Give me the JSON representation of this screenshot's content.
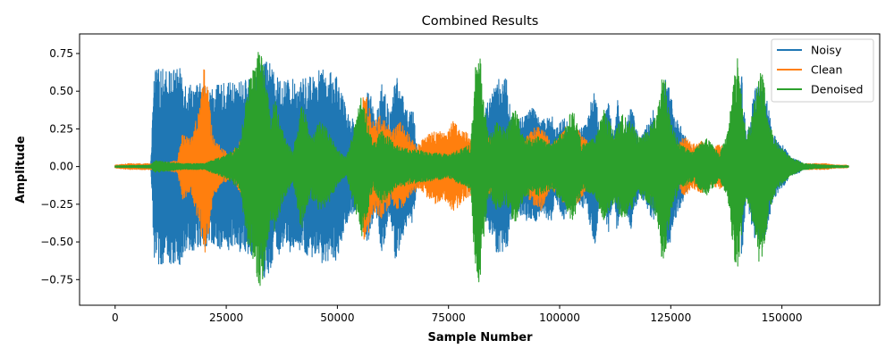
{
  "chart_data": {
    "type": "line",
    "title": "Combined Results",
    "xlabel": "Sample Number",
    "ylabel": "Amplitude",
    "xlim": [
      -8000,
      172000
    ],
    "ylim": [
      -0.92,
      0.88
    ],
    "x_ticks": [
      0,
      25000,
      50000,
      75000,
      100000,
      125000,
      150000
    ],
    "x_tick_labels": [
      "0",
      "25000",
      "50000",
      "75000",
      "100000",
      "125000",
      "150000"
    ],
    "y_ticks": [
      -0.75,
      -0.5,
      -0.25,
      0.0,
      0.25,
      0.5,
      0.75
    ],
    "y_tick_labels": [
      "−0.75",
      "−0.50",
      "−0.25",
      "0.00",
      "0.25",
      "0.50",
      "0.75"
    ],
    "grid": false,
    "legend_position": "top-right",
    "series": [
      {
        "name": "Noisy",
        "color": "#1f77b4",
        "x_range": [
          0,
          155000
        ],
        "envelope": {
          "x": [
            0,
            8000,
            8800,
            9000,
            15000,
            16000,
            20000,
            21000,
            24000,
            27000,
            32000,
            33500,
            36000,
            38000,
            42000,
            46000,
            48000,
            50000,
            52000,
            54000,
            55000,
            55500,
            56500,
            57500,
            58500,
            60000,
            61000,
            62000,
            63000,
            64000,
            65000,
            66000,
            67000,
            68000,
            72000,
            80000,
            85000,
            87000,
            88000,
            89000,
            90000,
            92000,
            94000,
            96000,
            98000,
            99000,
            101000,
            103000,
            106000,
            108000,
            109000,
            111000,
            112000,
            113000,
            114000,
            116000,
            118000,
            120000,
            121000,
            122000,
            124000,
            126000,
            128000,
            130000,
            132000,
            134000,
            136000,
            138000,
            139000,
            141000,
            142000,
            144000,
            146000,
            148000,
            150000,
            152000,
            154000,
            155000
          ],
          "y": [
            0.01,
            0.01,
            0.62,
            0.65,
            0.65,
            0.56,
            0.55,
            0.52,
            0.55,
            0.56,
            0.6,
            0.78,
            0.6,
            0.58,
            0.58,
            0.65,
            0.63,
            0.62,
            0.38,
            0.3,
            0.2,
            0.38,
            0.52,
            0.48,
            0.3,
            0.6,
            0.45,
            0.35,
            0.62,
            0.55,
            0.45,
            0.35,
            0.4,
            0.1,
            0.06,
            0.04,
            0.55,
            0.6,
            0.62,
            0.35,
            0.3,
            0.35,
            0.4,
            0.3,
            0.38,
            0.25,
            0.36,
            0.2,
            0.3,
            0.55,
            0.2,
            0.45,
            0.2,
            0.45,
            0.22,
            0.42,
            0.18,
            0.3,
            0.38,
            0.28,
            0.62,
            0.35,
            0.22,
            0.1,
            0.15,
            0.08,
            0.06,
            0.03,
            0.1,
            0.62,
            0.2,
            0.55,
            0.55,
            0.22,
            0.15,
            0.06,
            0.04,
            0.01
          ]
        }
      },
      {
        "name": "Clean",
        "color": "#ff7f0e",
        "x_range": [
          0,
          165000
        ],
        "envelope": {
          "x": [
            0,
            3000,
            6000,
            10000,
            14000,
            15000,
            17000,
            19000,
            20000,
            21000,
            22000,
            24000,
            26000,
            28000,
            30000,
            32000,
            33000,
            34000,
            36000,
            38000,
            40000,
            42000,
            44000,
            46000,
            48000,
            50000,
            52000,
            54000,
            55000,
            56000,
            57000,
            58000,
            60000,
            62000,
            64000,
            66000,
            68000,
            70000,
            72000,
            74000,
            76000,
            78000,
            80000,
            82000,
            84000,
            86000,
            88000,
            90000,
            92000,
            94000,
            96000,
            98000,
            100000,
            102000,
            104000,
            106000,
            108000,
            110000,
            112000,
            114000,
            116000,
            118000,
            120000,
            122000,
            124000,
            126000,
            128000,
            130000,
            132000,
            134000,
            136000,
            138000,
            140000,
            142000,
            144000,
            146000,
            148000,
            150000,
            152000,
            154000,
            156000,
            158000,
            160000,
            162000,
            164500,
            165000
          ],
          "y": [
            0.01,
            0.02,
            0.02,
            0.02,
            0.04,
            0.22,
            0.18,
            0.4,
            0.66,
            0.5,
            0.2,
            0.12,
            0.08,
            0.18,
            0.2,
            0.14,
            0.2,
            0.1,
            0.06,
            0.04,
            0.05,
            0.04,
            0.05,
            0.03,
            0.05,
            0.02,
            0.04,
            0.03,
            0.15,
            0.55,
            0.45,
            0.3,
            0.35,
            0.25,
            0.3,
            0.22,
            0.15,
            0.2,
            0.25,
            0.22,
            0.3,
            0.25,
            0.2,
            0.15,
            0.2,
            0.12,
            0.15,
            0.1,
            0.18,
            0.25,
            0.3,
            0.15,
            0.2,
            0.3,
            0.25,
            0.18,
            0.1,
            0.15,
            0.2,
            0.12,
            0.18,
            0.12,
            0.2,
            0.15,
            0.25,
            0.12,
            0.2,
            0.15,
            0.18,
            0.12,
            0.15,
            0.1,
            0.08,
            0.1,
            0.06,
            0.05,
            0.04,
            0.04,
            0.02,
            0.02,
            0.02,
            0.02,
            0.02,
            0.01,
            0.01,
            0.005
          ]
        }
      },
      {
        "name": "Denoised",
        "color": "#2ca02c",
        "x_range": [
          0,
          165000
        ],
        "envelope": {
          "x": [
            0,
            8000,
            9000,
            15000,
            20000,
            25000,
            28000,
            30000,
            32000,
            33000,
            34000,
            35000,
            36000,
            38000,
            40000,
            42000,
            44000,
            46000,
            48000,
            50000,
            52000,
            54000,
            55500,
            56500,
            58000,
            60000,
            63000,
            66000,
            70000,
            75000,
            80000,
            81000,
            82000,
            83000,
            84000,
            86000,
            88000,
            90000,
            92000,
            95000,
            98000,
            101000,
            103000,
            105000,
            108000,
            110000,
            112000,
            114000,
            116000,
            118000,
            120000,
            122000,
            123000,
            124000,
            125000,
            127000,
            130000,
            133000,
            136000,
            138000,
            139000,
            140000,
            141000,
            142000,
            144000,
            145000,
            146000,
            147000,
            149000,
            152000,
            155000,
            160000,
            165000
          ],
          "y": [
            0.005,
            0.01,
            0.04,
            0.02,
            0.02,
            0.08,
            0.15,
            0.55,
            0.75,
            0.83,
            0.6,
            0.35,
            0.45,
            0.22,
            0.1,
            0.45,
            0.2,
            0.3,
            0.25,
            0.12,
            0.06,
            0.3,
            0.5,
            0.35,
            0.15,
            0.25,
            0.15,
            0.12,
            0.1,
            0.08,
            0.15,
            0.72,
            0.78,
            0.45,
            0.2,
            0.3,
            0.25,
            0.4,
            0.2,
            0.2,
            0.15,
            0.25,
            0.4,
            0.15,
            0.2,
            0.38,
            0.25,
            0.35,
            0.3,
            0.2,
            0.25,
            0.35,
            0.65,
            0.55,
            0.3,
            0.15,
            0.1,
            0.2,
            0.08,
            0.25,
            0.55,
            0.75,
            0.45,
            0.2,
            0.45,
            0.7,
            0.55,
            0.3,
            0.15,
            0.06,
            0.02,
            0.01,
            0.005
          ]
        }
      }
    ]
  }
}
